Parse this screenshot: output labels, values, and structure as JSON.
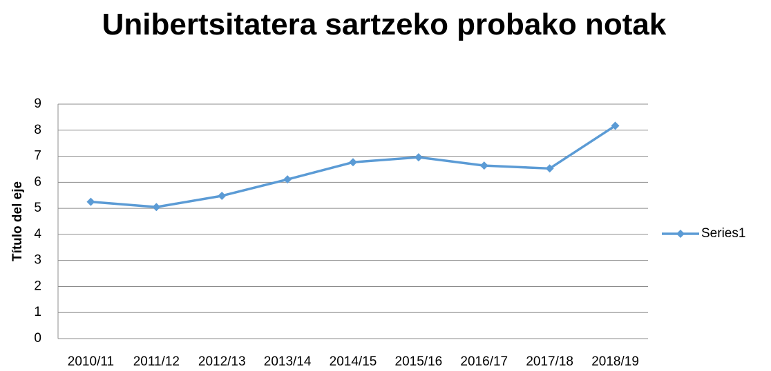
{
  "chart_data": {
    "type": "line",
    "title": "Unibertsitatera sartzeko probako notak",
    "y_label": "Título del eje",
    "categories": [
      "2010/11",
      "2011/12",
      "2012/13",
      "2013/14",
      "2014/15",
      "2015/16",
      "2016/17",
      "2017/18",
      "2018/19"
    ],
    "series": [
      {
        "name": "Series1",
        "color": "#5b9bd5",
        "values": [
          5.25,
          5.05,
          5.48,
          6.11,
          6.77,
          6.96,
          6.64,
          6.53,
          8.17
        ]
      }
    ],
    "ylim": [
      0,
      9
    ],
    "yticks": [
      0,
      1,
      2,
      3,
      4,
      5,
      6,
      7,
      8,
      9
    ],
    "grid": true,
    "legend": "right"
  }
}
